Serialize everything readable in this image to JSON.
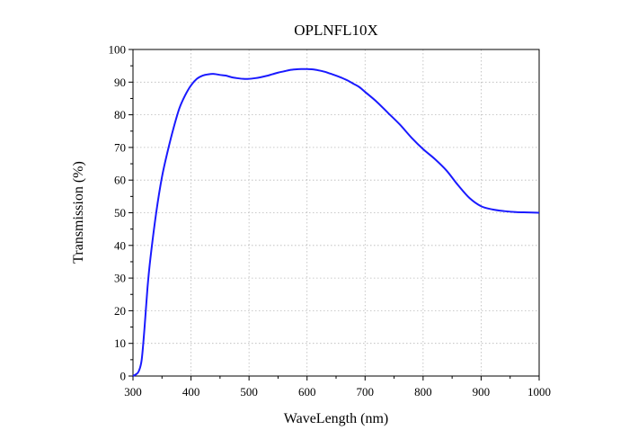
{
  "chart_data": {
    "type": "line",
    "title": "OPLNFL10X",
    "xlabel": "WaveLength (nm)",
    "ylabel": "Transmission (%)",
    "xlim": [
      300,
      1000
    ],
    "ylim": [
      0,
      100
    ],
    "x_ticks": [
      300,
      400,
      500,
      600,
      700,
      800,
      900,
      1000
    ],
    "y_ticks": [
      0,
      10,
      20,
      30,
      40,
      50,
      60,
      70,
      80,
      90,
      100
    ],
    "grid": true,
    "series": [
      {
        "color": "#1a1aff",
        "x": [
          300,
          305,
          310,
          315,
          320,
          325,
          330,
          340,
          350,
          360,
          370,
          380,
          390,
          400,
          410,
          420,
          430,
          440,
          450,
          460,
          470,
          480,
          490,
          500,
          510,
          520,
          530,
          540,
          550,
          560,
          570,
          580,
          590,
          600,
          610,
          620,
          630,
          640,
          650,
          660,
          670,
          680,
          690,
          700,
          720,
          740,
          760,
          780,
          800,
          820,
          840,
          860,
          880,
          900,
          920,
          940,
          960,
          980,
          1000
        ],
        "y": [
          0,
          0.5,
          1.5,
          5,
          15,
          27,
          36,
          50,
          61,
          69,
          76,
          82,
          86,
          89,
          91,
          92,
          92.4,
          92.5,
          92.2,
          92,
          91.5,
          91.2,
          91,
          91,
          91.2,
          91.5,
          91.9,
          92.4,
          92.9,
          93.3,
          93.7,
          93.9,
          94,
          94,
          93.9,
          93.6,
          93.2,
          92.6,
          92,
          91.3,
          90.5,
          89.5,
          88.5,
          87,
          84,
          80.5,
          77,
          73,
          69.5,
          66.5,
          63,
          58.5,
          54.5,
          52,
          51,
          50.5,
          50.2,
          50.1,
          50
        ]
      }
    ]
  }
}
